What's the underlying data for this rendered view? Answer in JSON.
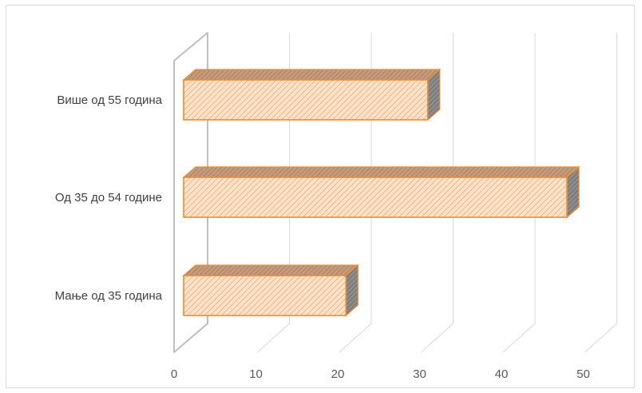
{
  "chart_data": {
    "type": "bar",
    "orientation": "horizontal",
    "style": "3d",
    "categories": [
      "Више од 55 година",
      "Од 35 до 54 године",
      "Мање од 35 година"
    ],
    "values": [
      31,
      48,
      21
    ],
    "xlim": [
      0,
      50
    ],
    "xticks": [
      "0",
      "10",
      "20",
      "30",
      "40",
      "50"
    ],
    "title": "",
    "xlabel": "",
    "ylabel": "",
    "grid": true,
    "legend": "none",
    "colors": {
      "bar_fill": "#fde3cc",
      "bar_hatch": "#f4a96a",
      "bar_edge": "#f08a2c",
      "bar_top": "#d8a680",
      "bar_side": "#8a8a8a",
      "grid": "#d9d9d9",
      "wall": "#bfbfbf"
    }
  }
}
